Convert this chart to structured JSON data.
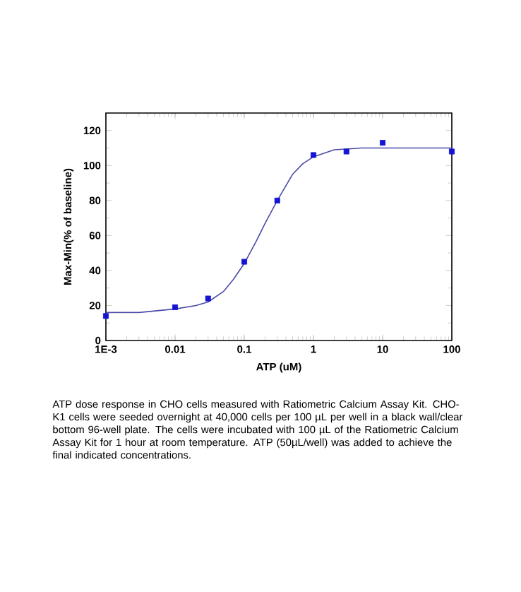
{
  "chart_data": {
    "type": "scatter",
    "xlabel": "ATP (uM)",
    "ylabel": "Max-Min(% of baseline)",
    "log": "x",
    "marker": "square",
    "grid": false,
    "xlim": [
      0.001,
      100
    ],
    "xticks": [
      {
        "value": 0.001,
        "label": "1E-3"
      },
      0.01,
      0.1,
      1,
      10,
      100
    ],
    "ylim": [
      0,
      130
    ],
    "yticks": [
      0,
      20,
      40,
      60,
      80,
      100,
      120
    ],
    "series": [
      {
        "color": "#1414d2",
        "x": [
          0.001,
          0.01,
          0.03,
          0.1,
          0.3,
          1,
          3,
          10,
          100
        ],
        "values": [
          14,
          19,
          24,
          45,
          80,
          106,
          108,
          113,
          108
        ]
      },
      {
        "type": "line",
        "marker": "none",
        "color": "#4a4aa8",
        "x": [
          0.001,
          0.003,
          0.01,
          0.02,
          0.03,
          0.05,
          0.07,
          0.1,
          0.15,
          0.2,
          0.3,
          0.5,
          0.7,
          1,
          2,
          5,
          20,
          100
        ],
        "values": [
          16,
          16,
          18,
          20,
          22,
          28,
          35,
          44,
          57,
          67,
          80,
          95,
          101,
          105,
          109,
          110,
          110,
          110
        ]
      }
    ],
    "annotations": [
      "ATP dose response in CHO cells measured with Ratiometric Calcium Assay Kit.  CHO-K1 cells were seeded overnight at 40,000 cells per 100 µL per well in a black wall/clear bottom 96-well plate.  The cells were incubated with 100 µL of the Ratiometric Calcium Assay Kit for 1 hour at room temperature. ATP (50µL/well) was added to achieve the final indicated concentrations."
    ]
  }
}
